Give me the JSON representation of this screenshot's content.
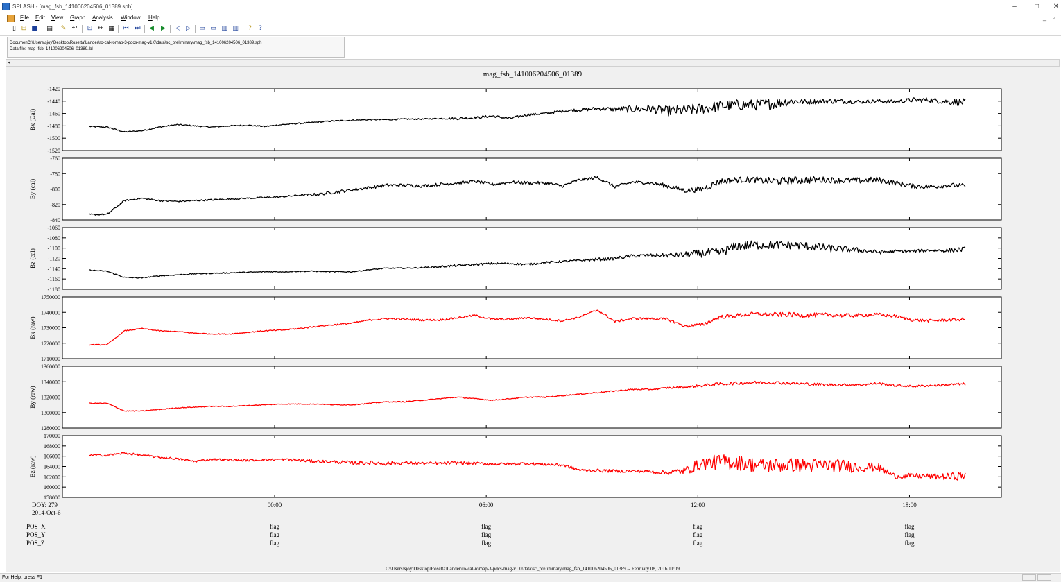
{
  "window": {
    "title": "SPLASH - [mag_fsb_141006204506_01389.sph]",
    "controls": {
      "minimize": "–",
      "maximize": "□",
      "close": "✕"
    },
    "mdi_controls": {
      "minimize": "_",
      "restore": "▫"
    }
  },
  "menu": [
    {
      "mnemonic": "F",
      "rest": "ile"
    },
    {
      "mnemonic": "E",
      "rest": "dit"
    },
    {
      "mnemonic": "V",
      "rest": "iew"
    },
    {
      "mnemonic": "G",
      "rest": "raph"
    },
    {
      "mnemonic": "A",
      "rest": "nalysis"
    },
    {
      "mnemonic": "W",
      "rest": "indow"
    },
    {
      "mnemonic": "H",
      "rest": "elp"
    }
  ],
  "toolbar": {
    "icons": [
      "new-file-icon",
      "open-folder-icon",
      "save-icon",
      "print-icon",
      "pencil-icon",
      "undo-icon",
      "zoom-icon",
      "link-icon",
      "grid-icon",
      "first-icon",
      "last-icon",
      "prev-icon",
      "next-icon",
      "shrink-icon",
      "expand-icon",
      "layout-a-icon",
      "layout-b-icon",
      "layout-c-icon",
      "layout-d-icon",
      "help-icon",
      "context-help-icon"
    ],
    "glyphs": [
      "▯",
      "⊞",
      "■",
      "▤",
      "✎",
      "↶",
      "⊡",
      "⇔",
      "▦",
      "⏮",
      "⏭",
      "◀",
      "▶",
      "◁",
      "▷",
      "▭",
      "▭",
      "▥",
      "▥",
      "?",
      "?"
    ]
  },
  "document_info": {
    "document_label": "Document:",
    "document_path": "C:\\Users\\sjoy\\Desktop\\Rosetta\\Lander\\ro-cal-romap-3-pdcs-mag-v1.0\\data\\sc_preliminary\\mag_fsb_141006204506_01389.sph",
    "datafile_label": "Data file:",
    "datafile_name": "mag_fsb_141006204506_01389.lbl"
  },
  "scroll": {
    "left_arrow": "◂"
  },
  "plot": {
    "title": "mag_fsb_141006204506_01389",
    "footer": "C:\\Users\\sjoy\\Desktop\\Rosetta\\Lander\\ro-cal-romap-3-pdcs-mag-v1.0\\data\\sc_preliminary\\mag_fsb_141006204506_01389 -- February 08, 2016 11:09",
    "x_axis": {
      "origin_labels": [
        "DOY: 279",
        "2014-Oct-6"
      ],
      "ticks": [
        "00:00",
        "06:00",
        "12:00",
        "18:00"
      ]
    },
    "flags": {
      "rows": [
        "POS_X",
        "POS_Y",
        "POS_Z"
      ],
      "value": "flag"
    }
  },
  "chart_data": {
    "type": "line",
    "title": "mag_fsb_141006204506_01389",
    "x_start": "2014-Oct-6 18:45",
    "x_end": "2014-Oct-7 19:35",
    "x_ticks": [
      "00:00",
      "06:00",
      "12:00",
      "18:00"
    ],
    "series": [
      {
        "name": "Bx (Cal)",
        "color": "#000000",
        "ylim": [
          -1520,
          -1420
        ],
        "y_ticks": [
          "-1420",
          "-1440",
          "-1460",
          "-1480",
          "-1500",
          "-1520"
        ],
        "values": [
          -1481,
          -1482,
          -1490,
          -1488,
          -1482,
          -1478,
          -1480,
          -1482,
          -1480,
          -1479,
          -1481,
          -1478,
          -1476,
          -1474,
          -1472,
          -1471,
          -1470,
          -1470,
          -1469,
          -1469,
          -1468,
          -1468,
          -1467,
          -1464,
          -1468,
          -1462,
          -1460,
          -1456,
          -1454,
          -1452,
          -1453,
          -1453,
          -1452,
          -1456,
          -1455,
          -1452,
          -1448,
          -1446,
          -1446,
          -1444,
          -1440,
          -1441,
          -1440,
          -1440,
          -1441,
          -1440,
          -1441,
          -1438,
          -1438,
          -1441,
          -1442
        ],
        "noise": [
          1,
          1,
          1,
          1,
          1,
          1,
          1,
          1,
          1,
          1,
          1,
          1,
          1,
          1,
          1,
          1,
          1,
          1,
          1,
          1,
          1,
          2,
          2,
          2,
          2,
          2,
          2,
          2,
          3,
          3,
          4,
          6,
          7,
          8,
          9,
          9,
          9,
          9,
          9,
          9,
          7,
          4,
          4,
          4,
          3,
          3,
          3,
          4,
          4,
          5,
          6
        ]
      },
      {
        "name": "By (cal)",
        "color": "#000000",
        "ylim": [
          -840,
          -760
        ],
        "y_ticks": [
          "-760",
          "-780",
          "-800",
          "-820",
          "-840"
        ],
        "values": [
          -833,
          -833,
          -815,
          -812,
          -815,
          -816,
          -815,
          -814,
          -813,
          -812,
          -811,
          -810,
          -808,
          -807,
          -804,
          -801,
          -798,
          -795,
          -795,
          -796,
          -794,
          -792,
          -790,
          -794,
          -791,
          -792,
          -792,
          -796,
          -788,
          -785,
          -797,
          -791,
          -792,
          -796,
          -802,
          -800,
          -790,
          -788,
          -788,
          -790,
          -789,
          -788,
          -788,
          -789,
          -789,
          -788,
          -792,
          -796,
          -797,
          -795,
          -796
        ],
        "noise": [
          1,
          1,
          1,
          1,
          1,
          1,
          1,
          1,
          1,
          1,
          1,
          1,
          1,
          2,
          2,
          2,
          2,
          2,
          2,
          2,
          2,
          2,
          2,
          2,
          2,
          2,
          2,
          2,
          2,
          2,
          2,
          2,
          2,
          3,
          3,
          4,
          4,
          4,
          4,
          5,
          5,
          5,
          4,
          4,
          4,
          4,
          3,
          3,
          3,
          3,
          3
        ]
      },
      {
        "name": "Bz (cal)",
        "color": "#000000",
        "ylim": [
          -1180,
          -1060
        ],
        "y_ticks": [
          "-1060",
          "-1080",
          "-1100",
          "-1120",
          "-1140",
          "-1160",
          "-1180"
        ],
        "values": [
          -1143,
          -1145,
          -1157,
          -1158,
          -1154,
          -1152,
          -1150,
          -1149,
          -1148,
          -1147,
          -1146,
          -1146,
          -1145,
          -1145,
          -1146,
          -1146,
          -1142,
          -1139,
          -1139,
          -1138,
          -1136,
          -1134,
          -1132,
          -1130,
          -1130,
          -1132,
          -1128,
          -1126,
          -1124,
          -1122,
          -1120,
          -1115,
          -1114,
          -1114,
          -1113,
          -1110,
          -1108,
          -1096,
          -1094,
          -1094,
          -1094,
          -1096,
          -1100,
          -1102,
          -1104,
          -1108,
          -1106,
          -1106,
          -1104,
          -1105,
          -1102
        ],
        "noise": [
          1,
          1,
          1,
          1,
          1,
          1,
          1,
          1,
          1,
          1,
          1,
          1,
          1,
          1,
          1,
          1,
          1,
          1,
          1,
          1,
          2,
          2,
          2,
          2,
          2,
          2,
          2,
          2,
          2,
          3,
          3,
          3,
          3,
          4,
          6,
          8,
          9,
          9,
          9,
          8,
          8,
          8,
          8,
          6,
          5,
          4,
          3,
          3,
          3,
          4,
          5
        ]
      },
      {
        "name": "Bx (raw)",
        "color": "#ff0000",
        "ylim": [
          1710000,
          1750000
        ],
        "y_ticks": [
          "1750000",
          "1740000",
          "1730000",
          "1720000",
          "1710000"
        ],
        "values": [
          1719000,
          1719000,
          1728000,
          1729500,
          1728000,
          1727500,
          1726500,
          1726000,
          1726000,
          1727000,
          1728000,
          1728500,
          1729500,
          1731000,
          1732000,
          1733000,
          1735000,
          1736000,
          1735500,
          1735000,
          1735000,
          1736500,
          1738000,
          1735500,
          1735500,
          1736500,
          1735500,
          1734500,
          1737000,
          1741500,
          1734000,
          1736000,
          1736000,
          1735500,
          1731000,
          1732000,
          1737000,
          1738000,
          1739000,
          1738500,
          1738500,
          1738000,
          1738500,
          1738000,
          1738000,
          1738500,
          1737500,
          1735000,
          1734500,
          1735000,
          1735500
        ],
        "noise": [
          300,
          300,
          300,
          300,
          300,
          300,
          300,
          300,
          300,
          300,
          400,
          400,
          400,
          500,
          500,
          500,
          600,
          600,
          600,
          600,
          600,
          600,
          600,
          600,
          600,
          600,
          600,
          600,
          600,
          600,
          700,
          700,
          700,
          900,
          900,
          1200,
          1200,
          1300,
          1300,
          1500,
          1500,
          1500,
          1300,
          1300,
          1200,
          1200,
          1000,
          1000,
          1000,
          1000,
          1000
        ]
      },
      {
        "name": "By (raw)",
        "color": "#ff0000",
        "ylim": [
          1280000,
          1360000
        ],
        "y_ticks": [
          "1360000",
          "1340000",
          "1320000",
          "1300000",
          "1280000"
        ],
        "values": [
          1312000,
          1312000,
          1302000,
          1302000,
          1304000,
          1306000,
          1307000,
          1308000,
          1308000,
          1309000,
          1310000,
          1311000,
          1311000,
          1311000,
          1310000,
          1310000,
          1312000,
          1314000,
          1314000,
          1316000,
          1318000,
          1320000,
          1318000,
          1316000,
          1318000,
          1320000,
          1320000,
          1322000,
          1324000,
          1326000,
          1328000,
          1330000,
          1330000,
          1332000,
          1333000,
          1335000,
          1337000,
          1338000,
          1339000,
          1339000,
          1338000,
          1337000,
          1336000,
          1336000,
          1336000,
          1338000,
          1335000,
          1334000,
          1335000,
          1336000,
          1337000
        ],
        "noise": [
          500,
          500,
          500,
          500,
          500,
          500,
          500,
          500,
          500,
          500,
          500,
          500,
          500,
          500,
          500,
          500,
          600,
          600,
          600,
          600,
          600,
          600,
          600,
          600,
          600,
          700,
          700,
          700,
          700,
          800,
          800,
          900,
          900,
          1200,
          1500,
          1800,
          2000,
          2000,
          2000,
          2000,
          2000,
          2000,
          1800,
          1700,
          1500,
          1500,
          1500,
          1400,
          1400,
          1600,
          1800
        ]
      },
      {
        "name": "Bz (raw)",
        "color": "#ff0000",
        "ylim": [
          158000,
          170000
        ],
        "y_ticks": [
          "170000",
          "168000",
          "166000",
          "164000",
          "162000",
          "160000",
          "158000"
        ],
        "values": [
          166200,
          166200,
          166600,
          166200,
          165800,
          165500,
          165000,
          165400,
          165300,
          165200,
          165300,
          165400,
          165200,
          165000,
          164900,
          164700,
          164700,
          164600,
          164700,
          164600,
          164600,
          164700,
          164600,
          164500,
          164500,
          164600,
          164400,
          164300,
          163300,
          163200,
          163100,
          163100,
          163000,
          162800,
          163200,
          164600,
          164900,
          164800,
          164300,
          164200,
          164300,
          164200,
          164300,
          164100,
          163900,
          163900,
          162100,
          162200,
          162100,
          162000,
          162300
        ],
        "noise": [
          200,
          200,
          200,
          200,
          200,
          200,
          200,
          200,
          200,
          200,
          200,
          200,
          300,
          300,
          300,
          400,
          400,
          400,
          300,
          300,
          300,
          300,
          300,
          300,
          300,
          300,
          300,
          300,
          300,
          300,
          300,
          300,
          300,
          400,
          800,
          1200,
          1500,
          1500,
          1400,
          1400,
          1400,
          1400,
          1300,
          1300,
          1000,
          800,
          500,
          500,
          500,
          700,
          900
        ]
      }
    ]
  }
}
